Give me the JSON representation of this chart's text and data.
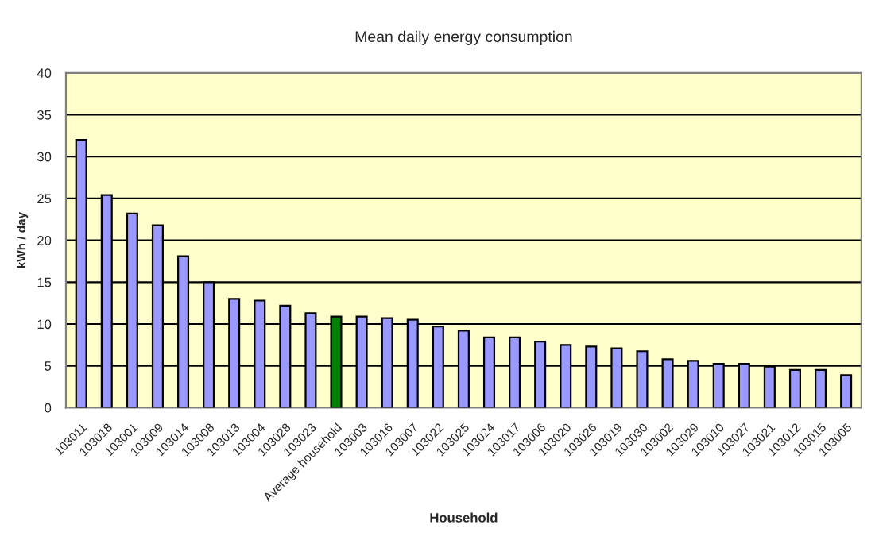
{
  "chart_data": {
    "type": "bar",
    "title": "Mean daily energy consumption",
    "xlabel": "Household",
    "ylabel": "kWh / day",
    "categories": [
      "103011",
      "103018",
      "103001",
      "103009",
      "103014",
      "103008",
      "103013",
      "103004",
      "103028",
      "103023",
      "Average household",
      "103003",
      "103016",
      "103007",
      "103022",
      "103025",
      "103024",
      "103017",
      "103006",
      "103020",
      "103026",
      "103019",
      "103030",
      "103002",
      "103029",
      "103010",
      "103027",
      "103021",
      "103012",
      "103015",
      "103005"
    ],
    "values": [
      32,
      25.4,
      23.2,
      21.8,
      18.1,
      15.0,
      13.0,
      12.8,
      12.2,
      11.3,
      10.9,
      10.9,
      10.7,
      10.5,
      9.7,
      9.2,
      8.4,
      8.4,
      7.9,
      7.5,
      7.3,
      7.1,
      6.75,
      5.8,
      5.6,
      5.25,
      5.25,
      4.9,
      4.5,
      4.5,
      3.9
    ],
    "colors": [
      "#9999ff",
      "#9999ff",
      "#9999ff",
      "#9999ff",
      "#9999ff",
      "#9999ff",
      "#9999ff",
      "#9999ff",
      "#9999ff",
      "#9999ff",
      "#008000",
      "#9999ff",
      "#9999ff",
      "#9999ff",
      "#9999ff",
      "#9999ff",
      "#9999ff",
      "#9999ff",
      "#9999ff",
      "#9999ff",
      "#9999ff",
      "#9999ff",
      "#9999ff",
      "#9999ff",
      "#9999ff",
      "#9999ff",
      "#9999ff",
      "#9999ff",
      "#9999ff",
      "#9999ff",
      "#9999ff"
    ],
    "ylim": [
      0,
      40
    ],
    "yticks": [
      0,
      5,
      10,
      15,
      20,
      25,
      30,
      35,
      40
    ],
    "grid": "y",
    "legend": false
  }
}
